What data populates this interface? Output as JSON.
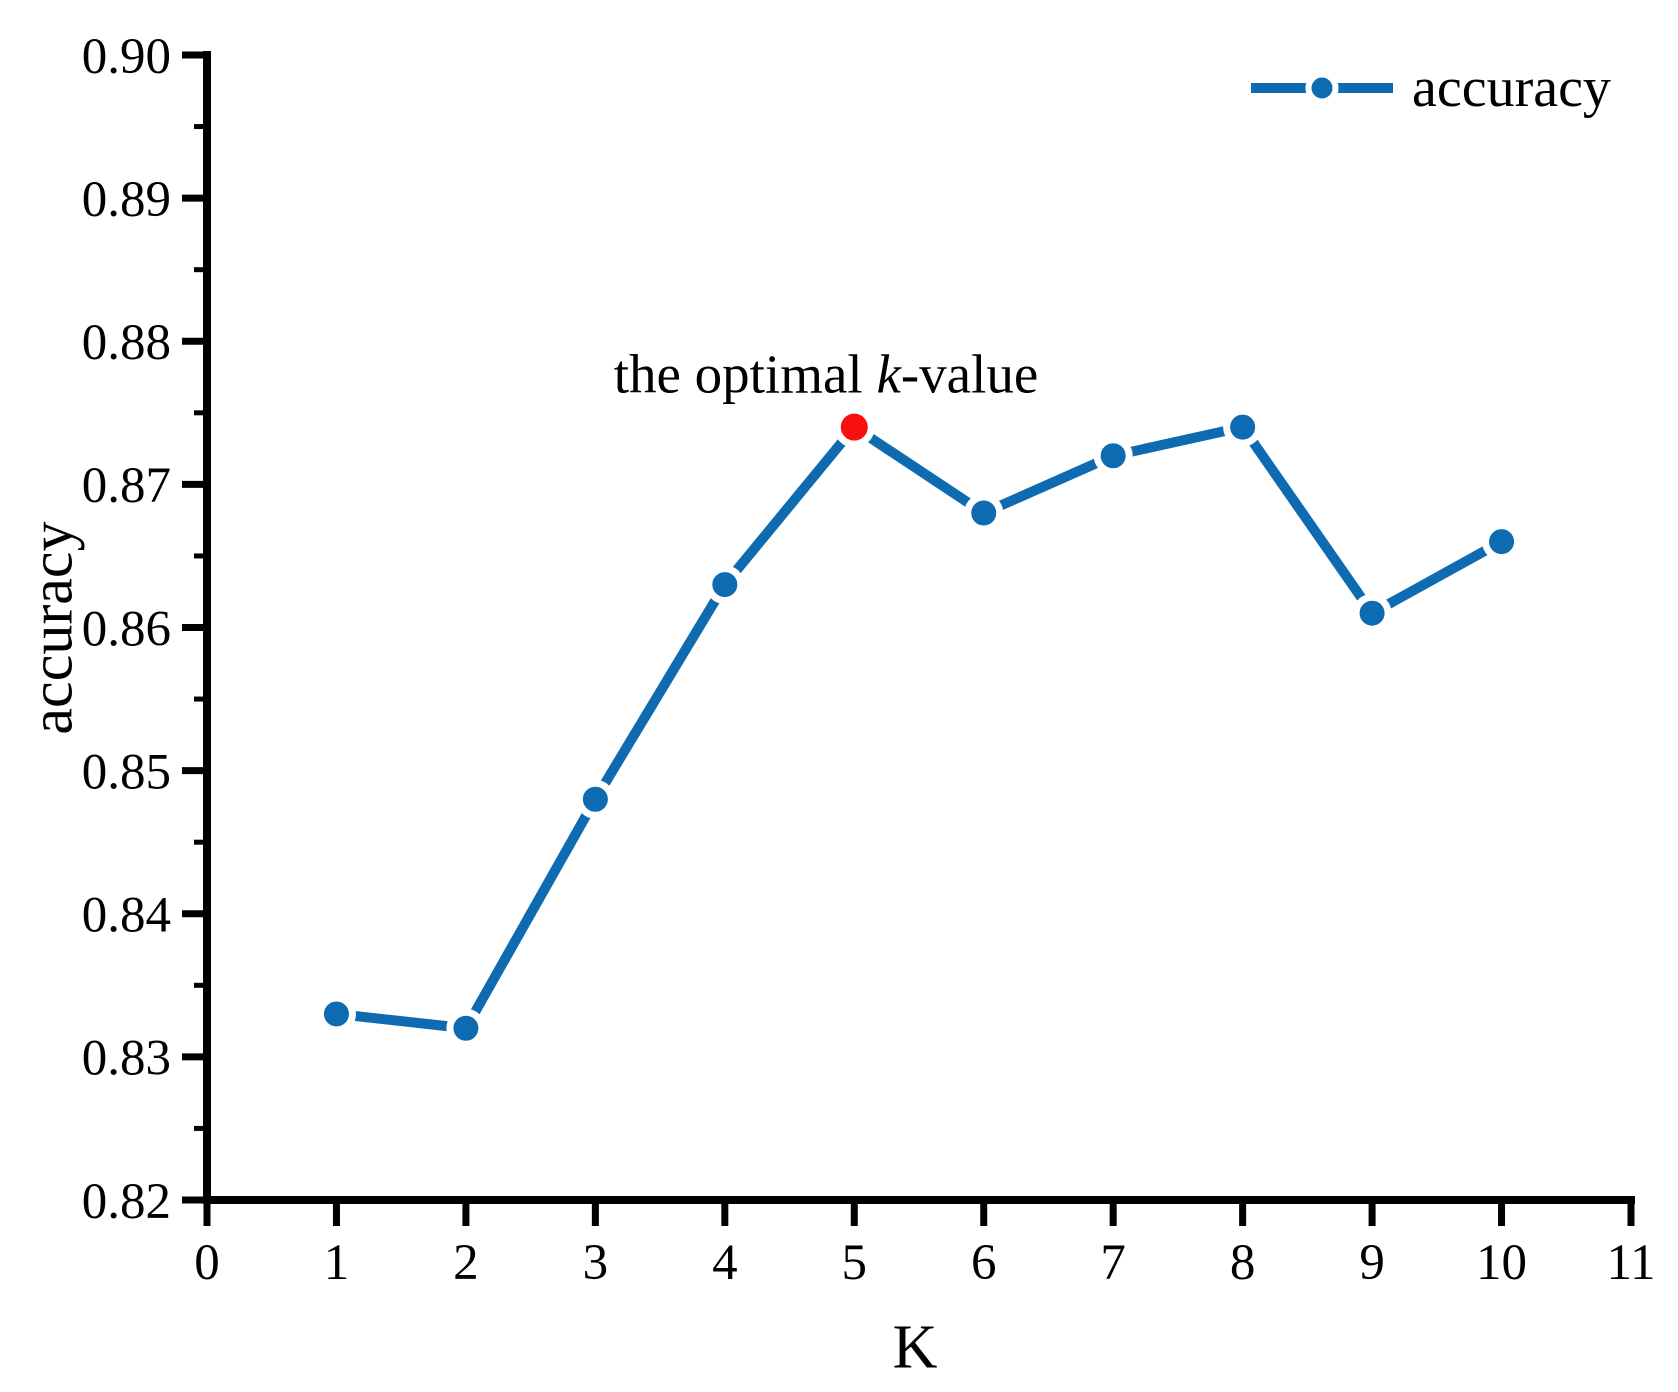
{
  "figure": {
    "background": "#ffffff"
  },
  "annotation": {
    "prefix": "the optimal ",
    "k": "k",
    "suffix": "-value"
  },
  "chart_data": {
    "type": "line",
    "title": "",
    "xlabel": "K",
    "ylabel": "accuracy",
    "legend": [
      "accuracy"
    ],
    "legend_position": "top-right",
    "grid": false,
    "x": [
      1,
      2,
      3,
      4,
      5,
      6,
      7,
      8,
      9,
      10
    ],
    "series": [
      {
        "name": "accuracy",
        "values": [
          0.833,
          0.832,
          0.848,
          0.863,
          0.874,
          0.868,
          0.872,
          0.874,
          0.861,
          0.866
        ]
      }
    ],
    "highlight_point": {
      "x": 5,
      "y": 0.874,
      "label": "the optimal k-value"
    },
    "xlim": [
      0,
      11
    ],
    "ylim": [
      0.82,
      0.9
    ],
    "x_ticks": [
      "0",
      "1",
      "2",
      "3",
      "4",
      "5",
      "6",
      "7",
      "8",
      "9",
      "10",
      "11"
    ],
    "y_ticks": [
      "0.82",
      "0.83",
      "0.84",
      "0.85",
      "0.86",
      "0.87",
      "0.88",
      "0.89",
      "0.90"
    ],
    "y_minor_ticks": [
      0.825,
      0.835,
      0.845,
      0.855,
      0.865,
      0.875,
      0.885,
      0.895
    ],
    "colors": {
      "line": "#0e6ab1",
      "marker": "#0e6ab1",
      "highlight": "#f6100f",
      "axis": "#000000",
      "text": "#000000"
    }
  }
}
